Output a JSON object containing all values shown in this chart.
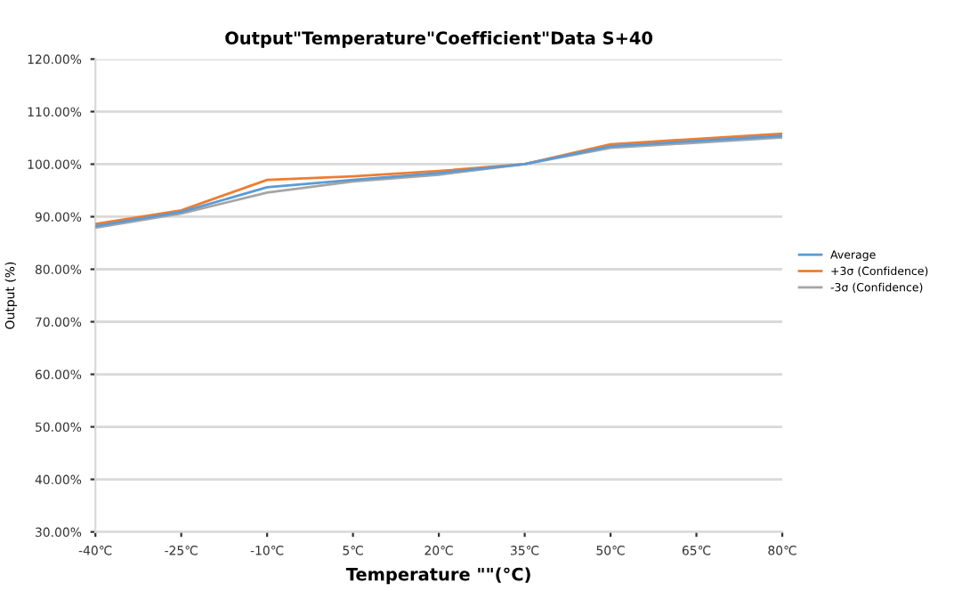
{
  "chart_data": {
    "type": "line",
    "title": "Output\"Temperature\"Coefficient\"Data S+40",
    "xlabel": "Temperature \"\"(°C)",
    "ylabel": "Output (%)",
    "x": [
      -40,
      -25,
      -10,
      5,
      20,
      35,
      50,
      65,
      80
    ],
    "series": [
      {
        "name": "Average",
        "color": "#5b9bd5",
        "values": [
          88.2,
          90.9,
          95.6,
          97.0,
          98.3,
          100,
          103.4,
          104.4,
          105.4
        ]
      },
      {
        "name": "+3σ (Confidence)",
        "color": "#ed7d31",
        "values": [
          88.6,
          91.2,
          97.0,
          97.7,
          98.7,
          100,
          103.8,
          104.8,
          105.8
        ]
      },
      {
        "name": "-3σ (Confidence)",
        "color": "#a5a5a5",
        "values": [
          87.9,
          90.6,
          94.6,
          96.7,
          98.0,
          100,
          103.1,
          104.1,
          105.1
        ]
      }
    ],
    "xlim": [
      -40,
      80
    ],
    "xticks": [
      {
        "value": -40,
        "label": "-40℃"
      },
      {
        "value": -25,
        "label": "-25℃"
      },
      {
        "value": -10,
        "label": "-10℃"
      },
      {
        "value": 5,
        "label": "5℃"
      },
      {
        "value": 20,
        "label": "20℃"
      },
      {
        "value": 35,
        "label": "35℃"
      },
      {
        "value": 50,
        "label": "50℃"
      },
      {
        "value": 65,
        "label": "65℃"
      },
      {
        "value": 80,
        "label": "80℃"
      }
    ],
    "ylim": [
      30,
      120
    ],
    "yticks": [
      {
        "value": 30,
        "label": "30.00%"
      },
      {
        "value": 40,
        "label": "40.00%"
      },
      {
        "value": 50,
        "label": "50.00%"
      },
      {
        "value": 60,
        "label": "60.00%"
      },
      {
        "value": 70,
        "label": "70.00%"
      },
      {
        "value": 80,
        "label": "80.00%"
      },
      {
        "value": 90,
        "label": "90.00%"
      },
      {
        "value": 100,
        "label": "100.00%"
      },
      {
        "value": 110,
        "label": "110.00%"
      },
      {
        "value": 120,
        "label": "120.00%"
      }
    ],
    "grid": "y",
    "legend": "right",
    "marker": "none",
    "line_style": "solid"
  }
}
